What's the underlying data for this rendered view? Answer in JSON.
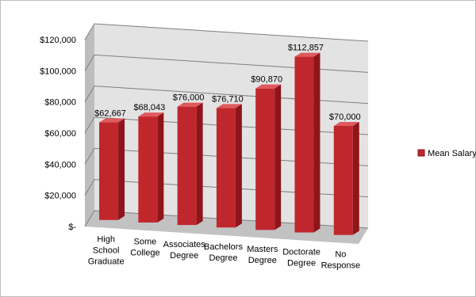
{
  "chart_data": {
    "type": "bar",
    "categories": [
      [
        "High",
        "School",
        "Graduate"
      ],
      [
        "Some",
        "College"
      ],
      [
        "Associates",
        "Degree"
      ],
      [
        "Bachelors",
        "Degree"
      ],
      [
        "Masters",
        "Degree"
      ],
      [
        "Doctorate",
        "Degree"
      ],
      [
        "No",
        "Response"
      ]
    ],
    "series": [
      {
        "name": "Mean Salary",
        "values": [
          62667,
          68043,
          76000,
          76710,
          90870,
          112857,
          70000
        ]
      }
    ],
    "data_labels": [
      "$62,667",
      "$68,043",
      "$76,000",
      "$76,710",
      "$90,870",
      "$112,857",
      "$70,000"
    ],
    "y_ticks": [
      {
        "value": 0,
        "label": "$-"
      },
      {
        "value": 20000,
        "label": "$20,000"
      },
      {
        "value": 40000,
        "label": "$40,000"
      },
      {
        "value": 60000,
        "label": "$60,000"
      },
      {
        "value": 80000,
        "label": "$80,000"
      },
      {
        "value": 100000,
        "label": "$100,000"
      },
      {
        "value": 120000,
        "label": "$120,000"
      }
    ],
    "ylim": [
      0,
      120000
    ],
    "grid": true,
    "style": "3d-column",
    "legend_position": "right",
    "colors": {
      "bar": "#c0272d",
      "bar_side": "#8e1519",
      "bar_top": "#e0595d",
      "wall": "#e3e3e3",
      "floor": "#c2c2c2",
      "grid": "#7f7f7f"
    }
  }
}
